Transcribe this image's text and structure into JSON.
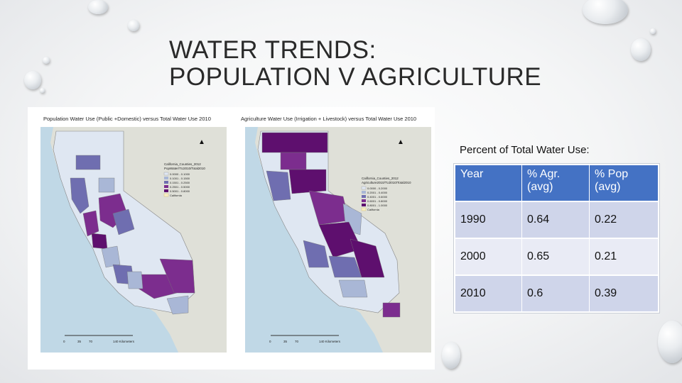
{
  "slide": {
    "title_line1": "WATER TRENDS:",
    "title_line2": "POPULATION V AGRICULTURE"
  },
  "maps": {
    "left": {
      "caption": "Population Water Use (Public +Domestic) versus Total Water Use 2010",
      "legend_title": "California_Counties_2012",
      "legend_field": "PopWater/TU2010/Total2010",
      "legend_items": [
        "0.0000 - 0.1000",
        "0.1001 - 0.1500",
        "0.1501 - 0.2500",
        "0.2501 - 0.5000",
        "0.5001 - 0.8000",
        "California"
      ],
      "scale_labels": [
        "0",
        "35",
        "70",
        "140 Kilometers"
      ]
    },
    "right": {
      "caption": "Agriculture Water Use (Irrigation + Livestock) versus Total Water Use 2010",
      "legend_title": "California_Counties_2012",
      "legend_field": "Agriculture2010/TU2010/Total2010",
      "legend_items": [
        "0.0000 - 0.2000",
        "0.2001 - 0.4000",
        "0.4001 - 0.6000",
        "0.6001 - 0.8000",
        "0.8001 - 1.0000",
        "California"
      ],
      "scale_labels": [
        "0",
        "35",
        "70",
        "140 Kilometers"
      ]
    },
    "colors": [
      "#dfe7f2",
      "#a9b7d6",
      "#6f6eb0",
      "#7c2d8e",
      "#5e0f6e"
    ]
  },
  "table": {
    "title": "Percent of Total Water Use:",
    "headers": [
      "Year",
      "% Agr. (avg)",
      "% Pop (avg)"
    ],
    "rows": [
      [
        "1990",
        "0.64",
        "0.22"
      ],
      [
        "2000",
        "0.65",
        "0.21"
      ],
      [
        "2010",
        "0.6",
        "0.39"
      ]
    ],
    "header_color": "#4472c4"
  }
}
